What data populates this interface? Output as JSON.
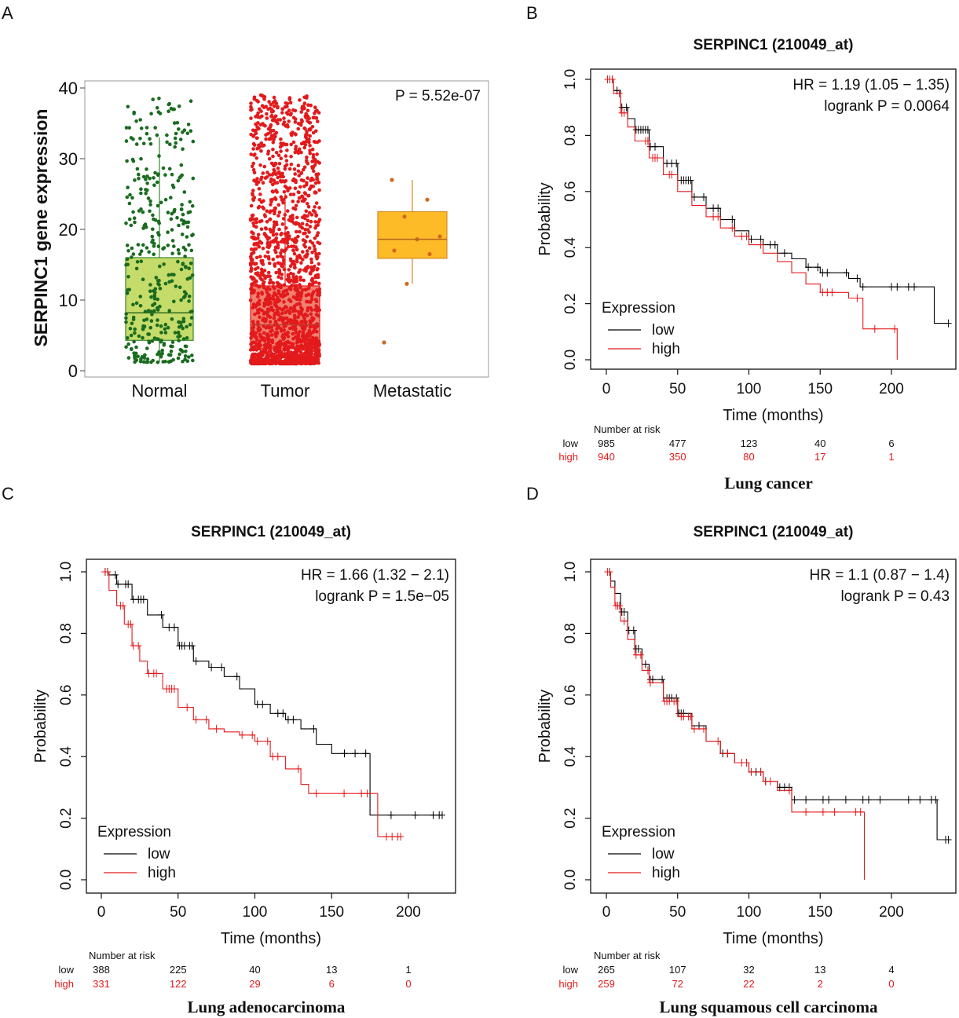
{
  "panels": {
    "A": {
      "letter": "A"
    },
    "B": {
      "letter": "B"
    },
    "C": {
      "letter": "C"
    },
    "D": {
      "letter": "D"
    }
  },
  "chart_data": [
    {
      "id": "A",
      "type": "box",
      "ylabel": "SERPINC1 gene expression",
      "ylim": [
        0,
        40
      ],
      "yticks": [
        0,
        10,
        20,
        30,
        40
      ],
      "annotation": "P = 5.52e-07",
      "categories": [
        "Normal",
        "Tumor",
        "Metastatic"
      ],
      "groups": [
        {
          "name": "Normal",
          "q1": 4.3,
          "median": 8.2,
          "q3": 16.0,
          "whisker_low": 1.2,
          "whisker_high": 33.0,
          "max": 38.8,
          "fill": "#c5dc6a",
          "point_color": "#1a6b1f",
          "n_points": 380
        },
        {
          "name": "Tumor",
          "q1": 3.1,
          "median": 6.5,
          "q3": 12.0,
          "whisker_low": 1.0,
          "whisker_high": 25.0,
          "max": 39.0,
          "fill": "#f08070",
          "point_color": "#e31a1c",
          "n_points": 1700
        },
        {
          "name": "Metastatic",
          "q1": 15.9,
          "median": 18.6,
          "q3": 22.5,
          "whisker_low": 12.3,
          "whisker_high": 27.0,
          "fill": "#fdbb28",
          "point_color": "#d2691e",
          "points": [
            4.0,
            12.3,
            16.5,
            17.0,
            18.6,
            19.0,
            21.8,
            24.2,
            27.0
          ]
        }
      ]
    },
    {
      "id": "B",
      "type": "line",
      "title": "SERPINC1 (210049_at)",
      "xlabel": "Time (months)",
      "ylabel": "Probability",
      "xlim": [
        0,
        240
      ],
      "xticks": [
        0,
        50,
        100,
        150,
        200
      ],
      "ylim": [
        0,
        1
      ],
      "yticks": [
        "0.0",
        "0.2",
        "0.4",
        "0.6",
        "0.8",
        "1.0"
      ],
      "hr": "HR = 1.19 (1.05 − 1.35)",
      "logrank": "logrank P = 0.0064",
      "legend_title": "Expression",
      "series": [
        {
          "name": "low",
          "color": "#000000",
          "x": [
            0,
            5,
            10,
            15,
            20,
            30,
            40,
            50,
            60,
            70,
            80,
            90,
            100,
            110,
            120,
            130,
            140,
            150,
            160,
            170,
            178,
            230,
            240
          ],
          "y": [
            1.0,
            0.96,
            0.9,
            0.86,
            0.82,
            0.76,
            0.7,
            0.64,
            0.58,
            0.54,
            0.5,
            0.46,
            0.43,
            0.41,
            0.38,
            0.36,
            0.33,
            0.31,
            0.31,
            0.29,
            0.26,
            0.13,
            0.13
          ]
        },
        {
          "name": "high",
          "color": "#e31a1c",
          "x": [
            0,
            5,
            10,
            15,
            20,
            30,
            40,
            50,
            60,
            70,
            80,
            90,
            100,
            110,
            120,
            130,
            140,
            150,
            160,
            170,
            178,
            180,
            190,
            204
          ],
          "y": [
            1.0,
            0.95,
            0.88,
            0.83,
            0.78,
            0.72,
            0.66,
            0.6,
            0.55,
            0.51,
            0.47,
            0.44,
            0.41,
            0.38,
            0.35,
            0.31,
            0.27,
            0.24,
            0.24,
            0.22,
            0.22,
            0.11,
            0.11,
            0.0
          ]
        }
      ],
      "risk_header": "Number at risk",
      "risk_x": [
        0,
        50,
        100,
        150,
        200
      ],
      "risk": [
        {
          "label": "low",
          "values": [
            "985",
            "477",
            "123",
            "40",
            "6"
          ]
        },
        {
          "label": "high",
          "values": [
            "940",
            "350",
            "80",
            "17",
            "1"
          ]
        }
      ],
      "caption": "Lung cancer"
    },
    {
      "id": "C",
      "type": "line",
      "title": "SERPINC1 (210049_at)",
      "xlabel": "Time (months)",
      "ylabel": "Probability",
      "xlim": [
        0,
        225
      ],
      "xticks": [
        0,
        50,
        100,
        150,
        200
      ],
      "ylim": [
        0,
        1
      ],
      "yticks": [
        "0.0",
        "0.2",
        "0.4",
        "0.6",
        "0.8",
        "1.0"
      ],
      "hr": "HR = 1.66 (1.32 − 2.1)",
      "logrank": "logrank P = 1.5e−05",
      "legend_title": "Expression",
      "series": [
        {
          "name": "low",
          "color": "#000000",
          "x": [
            0,
            5,
            10,
            20,
            30,
            40,
            50,
            60,
            70,
            80,
            90,
            100,
            110,
            120,
            130,
            140,
            150,
            160,
            174,
            175,
            222
          ],
          "y": [
            1.0,
            0.99,
            0.96,
            0.91,
            0.86,
            0.82,
            0.76,
            0.71,
            0.69,
            0.66,
            0.62,
            0.57,
            0.54,
            0.52,
            0.49,
            0.44,
            0.41,
            0.41,
            0.41,
            0.21,
            0.21
          ]
        },
        {
          "name": "high",
          "color": "#e31a1c",
          "x": [
            0,
            5,
            10,
            15,
            20,
            25,
            30,
            40,
            50,
            60,
            70,
            80,
            90,
            100,
            110,
            120,
            130,
            135,
            145,
            175,
            180,
            195
          ],
          "y": [
            1.0,
            0.94,
            0.89,
            0.83,
            0.76,
            0.71,
            0.67,
            0.62,
            0.56,
            0.52,
            0.49,
            0.48,
            0.47,
            0.45,
            0.4,
            0.36,
            0.31,
            0.28,
            0.28,
            0.28,
            0.14,
            0.14
          ]
        }
      ],
      "risk_header": "Number at risk",
      "risk_x": [
        0,
        50,
        100,
        150,
        200
      ],
      "risk": [
        {
          "label": "low",
          "values": [
            "388",
            "225",
            "40",
            "13",
            "1"
          ]
        },
        {
          "label": "high",
          "values": [
            "331",
            "122",
            "29",
            "6",
            "0"
          ]
        }
      ],
      "caption": "Lung adenocarcinoma"
    },
    {
      "id": "D",
      "type": "line",
      "title": "SERPINC1 (210049_at)",
      "xlabel": "Time (months)",
      "ylabel": "Probability",
      "xlim": [
        0,
        240
      ],
      "xticks": [
        0,
        50,
        100,
        150,
        200
      ],
      "ylim": [
        0,
        1
      ],
      "yticks": [
        "0.0",
        "0.2",
        "0.4",
        "0.6",
        "0.8",
        "1.0"
      ],
      "hr": "HR = 1.1 (0.87 − 1.4)",
      "logrank": "logrank P = 0.43",
      "legend_title": "Expression",
      "series": [
        {
          "name": "low",
          "color": "#000000",
          "x": [
            0,
            3,
            6,
            10,
            15,
            20,
            25,
            30,
            40,
            50,
            60,
            70,
            80,
            90,
            100,
            110,
            120,
            130,
            150,
            170,
            230,
            232,
            240
          ],
          "y": [
            1.0,
            0.97,
            0.93,
            0.87,
            0.81,
            0.75,
            0.7,
            0.65,
            0.59,
            0.54,
            0.5,
            0.45,
            0.41,
            0.38,
            0.35,
            0.32,
            0.3,
            0.26,
            0.26,
            0.26,
            0.26,
            0.13,
            0.13
          ]
        },
        {
          "name": "high",
          "color": "#e31a1c",
          "x": [
            0,
            3,
            6,
            10,
            15,
            20,
            25,
            30,
            40,
            50,
            60,
            70,
            80,
            90,
            100,
            110,
            120,
            130,
            150,
            170,
            180,
            181
          ],
          "y": [
            1.0,
            0.95,
            0.89,
            0.84,
            0.78,
            0.73,
            0.68,
            0.64,
            0.58,
            0.53,
            0.49,
            0.45,
            0.41,
            0.38,
            0.35,
            0.32,
            0.29,
            0.22,
            0.22,
            0.22,
            0.22,
            0.0
          ]
        }
      ],
      "risk_header": "Number at risk",
      "risk_x": [
        0,
        50,
        100,
        150,
        200
      ],
      "risk": [
        {
          "label": "low",
          "values": [
            "265",
            "107",
            "32",
            "13",
            "4"
          ]
        },
        {
          "label": "high",
          "values": [
            "259",
            "72",
            "22",
            "2",
            "0"
          ]
        }
      ],
      "caption": "Lung squamous cell carcinoma"
    }
  ]
}
